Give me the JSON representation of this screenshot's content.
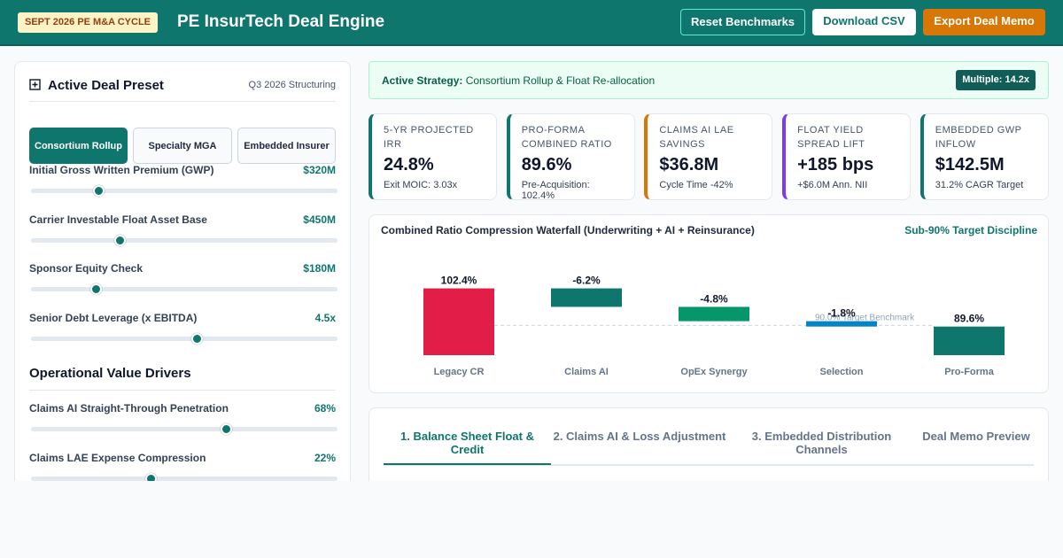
{
  "header": {
    "badge": "SEPT 2026 PE M&A CYCLE",
    "title": "PE InsurTech Deal Engine",
    "buttons": [
      "Reset Benchmarks",
      "Download CSV",
      "Export Deal Memo"
    ]
  },
  "preset": {
    "title": "Active Deal Preset",
    "period": "Q3 2026 Structuring",
    "options": [
      "Consortium Rollup",
      "Specialty MGA",
      "Embedded Insurer"
    ],
    "sliders": [
      {
        "label": "Initial Gross Written Premium (GWP)",
        "value": "$320M"
      },
      {
        "label": "Carrier Investable Float Asset Base",
        "value": "$450M"
      },
      {
        "label": "Sponsor Equity Check",
        "value": "$180M"
      },
      {
        "label": "Senior Debt Leverage (x EBITDA)",
        "value": "4.5x"
      }
    ],
    "drivers_title": "Operational Value Drivers",
    "drivers": [
      {
        "label": "Claims AI Straight-Through Penetration",
        "value": "68%"
      },
      {
        "label": "Claims LAE Expense Compression",
        "value": "22%"
      }
    ]
  },
  "strategy": {
    "label": "Active Strategy:",
    "text": "Consortium Rollup & Float Re-allocation",
    "multiple": "Multiple: 14.2x"
  },
  "kpis": [
    {
      "title": "5-YR PROJECTED IRR",
      "value": "24.8%",
      "note": "Exit MOIC: 3.03x"
    },
    {
      "title": "PRO-FORMA COMBINED RATIO",
      "value": "89.6%",
      "note": "Pre-Acquisition: 102.4%"
    },
    {
      "title": "CLAIMS AI LAE SAVINGS",
      "value": "$36.8M",
      "note": "Cycle Time -42%"
    },
    {
      "title": "FLOAT YIELD SPREAD LIFT",
      "value": "+185 bps",
      "note": "+$6.0M Ann. NII"
    },
    {
      "title": "EMBEDDED GWP INFLOW",
      "value": "$142.5M",
      "note": "31.2% CAGR Target"
    }
  ],
  "chart_data": {
    "type": "waterfall",
    "title": "Combined Ratio Compression Waterfall (Underwriting + AI + Reinsurance)",
    "subtitle": "Sub-90% Target Discipline",
    "categories": [
      "Legacy CR",
      "Claims AI",
      "OpEx Synergy",
      "Selection",
      "Pro-Forma"
    ],
    "values": [
      102.4,
      -6.2,
      -4.8,
      -1.8,
      89.6
    ],
    "value_labels": [
      "102.4%",
      "-6.2%",
      "-4.8%",
      "-1.8%",
      "89.6%"
    ],
    "colors": [
      "#e11d48",
      "#0f766e",
      "#059669",
      "#0284c7",
      "#0f766e"
    ],
    "ylim": [
      80,
      110
    ],
    "target": {
      "value": 90,
      "label": "90.0% Target Benchmark"
    }
  },
  "tabs": [
    "1. Balance Sheet Float & Credit",
    "2. Claims AI & Loss Adjustment",
    "3. Embedded Distribution Channels",
    "Deal Memo Preview"
  ]
}
